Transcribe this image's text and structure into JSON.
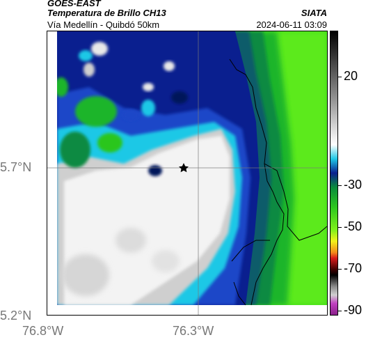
{
  "header": {
    "satellite": "GOES-EAST",
    "product": "Temperatura de Brillo CH13",
    "organization": "SIATA",
    "route": "Vía Medellín - Quibdó 50km",
    "timestamp": "2024-06-11 03:09"
  },
  "axes": {
    "lat_ticks": [
      "5.7°N",
      "5.2°N"
    ],
    "lon_ticks": [
      "76.8°W",
      "76.3°W"
    ]
  },
  "colorbar": {
    "tick_labels": [
      "20",
      "-30",
      "-50",
      "-70",
      "-90"
    ]
  },
  "map": {
    "marker": "star-icon",
    "colors": {
      "cloud_cold_white": "#f4f4f4",
      "cloud_gray": "#cfcfcf",
      "cyan": "#1ec8e6",
      "deep_blue": "#0a1f8f",
      "navy": "#06135a",
      "dark_green": "#0a8a3c",
      "green": "#2cc61e",
      "bright_green": "#56e51d"
    }
  }
}
